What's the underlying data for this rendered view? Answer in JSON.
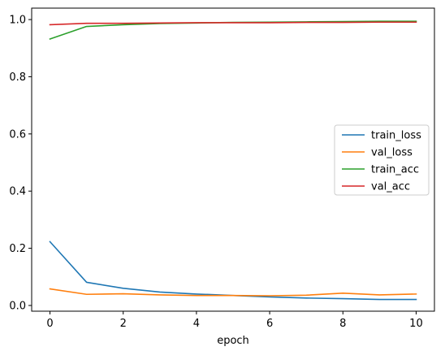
{
  "chart_data": {
    "type": "line",
    "title": "",
    "xlabel": "epoch",
    "ylabel": "",
    "x": [
      0,
      1,
      2,
      3,
      4,
      5,
      6,
      7,
      8,
      9,
      10
    ],
    "xlim": [
      -0.5,
      10.5
    ],
    "ylim": [
      -0.02,
      1.04
    ],
    "xticks": [
      "0",
      "2",
      "4",
      "6",
      "8",
      "10"
    ],
    "yticks": [
      "0.0",
      "0.2",
      "0.4",
      "0.6",
      "0.8",
      "1.0"
    ],
    "grid": false,
    "legend_position": "center-right",
    "series": [
      {
        "name": "train_loss",
        "color": "#1f77b4",
        "values": [
          0.223,
          0.081,
          0.06,
          0.047,
          0.04,
          0.035,
          0.03,
          0.026,
          0.024,
          0.021,
          0.021
        ]
      },
      {
        "name": "val_loss",
        "color": "#ff7f0e",
        "values": [
          0.058,
          0.039,
          0.041,
          0.037,
          0.035,
          0.035,
          0.034,
          0.036,
          0.043,
          0.037,
          0.04
        ]
      },
      {
        "name": "train_acc",
        "color": "#2ca02c",
        "values": [
          0.932,
          0.976,
          0.982,
          0.986,
          0.988,
          0.99,
          0.991,
          0.992,
          0.993,
          0.994,
          0.994
        ]
      },
      {
        "name": "val_acc",
        "color": "#d62728",
        "values": [
          0.982,
          0.987,
          0.987,
          0.988,
          0.989,
          0.989,
          0.989,
          0.99,
          0.99,
          0.991,
          0.991
        ]
      }
    ]
  }
}
